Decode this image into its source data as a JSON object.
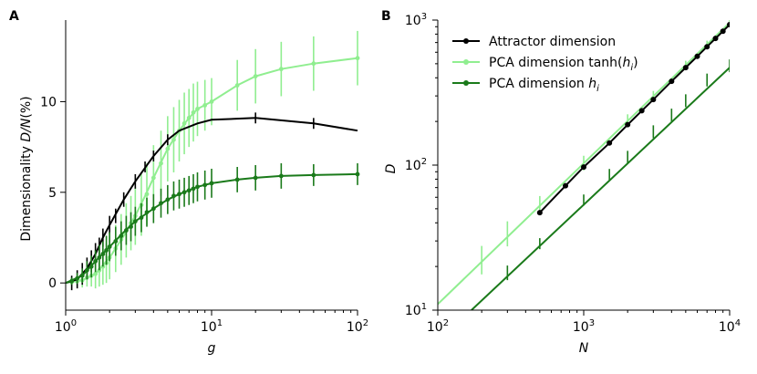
{
  "colors": {
    "attractor": "#000000",
    "pca_tanh": "#90ee90",
    "pca_h": "#1a7a1a"
  },
  "chart_data": [
    {
      "panel": "A",
      "type": "line",
      "xscale": "log",
      "xlim": [
        1,
        100
      ],
      "ylim": [
        -1.5,
        14.5
      ],
      "xlabel": "g",
      "ylabel": "Dimensionality D/N(%)",
      "xticks": [
        {
          "value": 1,
          "base": "10",
          "exp": "0"
        },
        {
          "value": 10,
          "base": "10",
          "exp": "1"
        },
        {
          "value": 100,
          "base": "10",
          "exp": "2"
        }
      ],
      "yticks": [
        {
          "value": 0,
          "label": "0"
        },
        {
          "value": 5,
          "label": "5"
        },
        {
          "value": 10,
          "label": "10"
        }
      ],
      "series": [
        {
          "name": "PCA dimension tanh(h_i)",
          "color_key": "pca_tanh",
          "line": [
            [
              1.0,
              0.0
            ],
            [
              1.3,
              0.15
            ],
            [
              1.6,
              0.5
            ],
            [
              2.0,
              1.4
            ],
            [
              2.5,
              2.6
            ],
            [
              3.0,
              3.7
            ],
            [
              3.5,
              4.8
            ],
            [
              4.0,
              5.8
            ],
            [
              5.0,
              7.4
            ],
            [
              6.0,
              8.4
            ],
            [
              7.0,
              9.1
            ],
            [
              8.0,
              9.6
            ],
            [
              10.0,
              10.0
            ],
            [
              15.0,
              10.9
            ],
            [
              20.0,
              11.4
            ],
            [
              30.0,
              11.8
            ],
            [
              50.0,
              12.1
            ],
            [
              100.0,
              12.4
            ]
          ],
          "points": [
            [
              1.1,
              0.05,
              0.2
            ],
            [
              1.2,
              0.1,
              0.3
            ],
            [
              1.3,
              0.15,
              0.4
            ],
            [
              1.4,
              0.3,
              0.5
            ],
            [
              1.5,
              0.4,
              0.6
            ],
            [
              1.6,
              0.5,
              0.8
            ],
            [
              1.7,
              0.7,
              0.9
            ],
            [
              1.8,
              0.9,
              1.0
            ],
            [
              1.9,
              1.1,
              1.1
            ],
            [
              2.0,
              1.4,
              1.2
            ],
            [
              2.2,
              1.9,
              1.3
            ],
            [
              2.4,
              2.4,
              1.4
            ],
            [
              2.6,
              2.9,
              1.5
            ],
            [
              2.8,
              3.3,
              1.5
            ],
            [
              3.0,
              3.7,
              1.6
            ],
            [
              3.3,
              4.3,
              1.7
            ],
            [
              3.6,
              4.9,
              1.7
            ],
            [
              4.0,
              5.8,
              1.8
            ],
            [
              4.5,
              6.6,
              1.8
            ],
            [
              5.0,
              7.4,
              1.8
            ],
            [
              5.5,
              7.9,
              1.8
            ],
            [
              6.0,
              8.4,
              1.7
            ],
            [
              6.5,
              8.8,
              1.7
            ],
            [
              7.0,
              9.1,
              1.6
            ],
            [
              7.5,
              9.4,
              1.6
            ],
            [
              8.0,
              9.6,
              1.5
            ],
            [
              9.0,
              9.8,
              1.4
            ],
            [
              10.0,
              10.0,
              1.3
            ],
            [
              15.0,
              10.9,
              1.4
            ],
            [
              20.0,
              11.4,
              1.5
            ],
            [
              30.0,
              11.8,
              1.5
            ],
            [
              50.0,
              12.1,
              1.5
            ],
            [
              100.0,
              12.4,
              1.5
            ]
          ]
        },
        {
          "name": "Attractor dimension",
          "color_key": "attractor",
          "line": [
            [
              1.0,
              0.0
            ],
            [
              1.2,
              0.2
            ],
            [
              1.4,
              0.8
            ],
            [
              1.6,
              1.6
            ],
            [
              1.8,
              2.5
            ],
            [
              2.0,
              3.2
            ],
            [
              2.5,
              4.6
            ],
            [
              3.0,
              5.6
            ],
            [
              4.0,
              7.0
            ],
            [
              5.0,
              7.9
            ],
            [
              6.0,
              8.4
            ],
            [
              8.0,
              8.8
            ],
            [
              10.0,
              9.0
            ],
            [
              20.0,
              9.1
            ],
            [
              50.0,
              8.8
            ],
            [
              100.0,
              8.4
            ]
          ],
          "points": [
            [
              1.1,
              0.0,
              0.4
            ],
            [
              1.2,
              0.2,
              0.5
            ],
            [
              1.3,
              0.5,
              0.6
            ],
            [
              1.4,
              0.8,
              0.6
            ],
            [
              1.5,
              1.2,
              0.6
            ],
            [
              1.6,
              1.6,
              0.6
            ],
            [
              1.7,
              2.0,
              0.5
            ],
            [
              1.8,
              2.5,
              0.5
            ],
            [
              2.0,
              3.2,
              0.5
            ],
            [
              2.2,
              3.7,
              0.4
            ],
            [
              2.5,
              4.6,
              0.4
            ],
            [
              3.0,
              5.6,
              0.4
            ],
            [
              3.5,
              6.4,
              0.3
            ],
            [
              4.0,
              7.0,
              0.3
            ],
            [
              5.0,
              7.9,
              0.3
            ],
            [
              20.0,
              9.1,
              0.3
            ],
            [
              50.0,
              8.8,
              0.3
            ]
          ]
        },
        {
          "name": "PCA dimension h_i",
          "color_key": "pca_h",
          "line": [
            [
              1.0,
              0.0
            ],
            [
              1.3,
              0.4
            ],
            [
              1.6,
              1.2
            ],
            [
              2.0,
              2.0
            ],
            [
              2.5,
              2.8
            ],
            [
              3.0,
              3.4
            ],
            [
              4.0,
              4.1
            ],
            [
              5.0,
              4.6
            ],
            [
              6.0,
              4.9
            ],
            [
              8.0,
              5.3
            ],
            [
              10.0,
              5.5
            ],
            [
              15.0,
              5.7
            ],
            [
              20.0,
              5.8
            ],
            [
              30.0,
              5.9
            ],
            [
              50.0,
              5.95
            ],
            [
              100.0,
              6.0
            ]
          ],
          "points": [
            [
              1.1,
              0.1,
              0.2
            ],
            [
              1.2,
              0.25,
              0.3
            ],
            [
              1.3,
              0.4,
              0.4
            ],
            [
              1.4,
              0.7,
              0.5
            ],
            [
              1.5,
              0.9,
              0.6
            ],
            [
              1.6,
              1.2,
              0.6
            ],
            [
              1.7,
              1.4,
              0.7
            ],
            [
              1.8,
              1.6,
              0.7
            ],
            [
              1.9,
              1.8,
              0.8
            ],
            [
              2.0,
              2.0,
              0.8
            ],
            [
              2.2,
              2.3,
              0.8
            ],
            [
              2.4,
              2.6,
              0.8
            ],
            [
              2.6,
              2.9,
              0.8
            ],
            [
              2.8,
              3.1,
              0.8
            ],
            [
              3.0,
              3.4,
              0.8
            ],
            [
              3.3,
              3.6,
              0.8
            ],
            [
              3.6,
              3.9,
              0.8
            ],
            [
              4.0,
              4.1,
              0.8
            ],
            [
              4.5,
              4.4,
              0.8
            ],
            [
              5.0,
              4.6,
              0.8
            ],
            [
              5.5,
              4.8,
              0.8
            ],
            [
              6.0,
              4.9,
              0.8
            ],
            [
              6.5,
              5.0,
              0.8
            ],
            [
              7.0,
              5.1,
              0.8
            ],
            [
              7.5,
              5.2,
              0.8
            ],
            [
              8.0,
              5.3,
              0.8
            ],
            [
              9.0,
              5.4,
              0.8
            ],
            [
              10.0,
              5.5,
              0.8
            ],
            [
              15.0,
              5.7,
              0.7
            ],
            [
              20.0,
              5.8,
              0.7
            ],
            [
              30.0,
              5.9,
              0.7
            ],
            [
              50.0,
              5.95,
              0.6
            ],
            [
              100.0,
              6.0,
              0.6
            ]
          ]
        }
      ]
    },
    {
      "panel": "B",
      "type": "line",
      "xscale": "log",
      "yscale": "log",
      "xlim": [
        100,
        10000
      ],
      "ylim": [
        10,
        1000
      ],
      "xlabel": "N",
      "ylabel": "D",
      "xticks": [
        {
          "value": 100,
          "base": "10",
          "exp": "2"
        },
        {
          "value": 1000,
          "base": "10",
          "exp": "3"
        },
        {
          "value": 10000,
          "base": "10",
          "exp": "4"
        }
      ],
      "yticks": [
        {
          "value": 10,
          "base": "10",
          "exp": "1"
        },
        {
          "value": 100,
          "base": "10",
          "exp": "2"
        },
        {
          "value": 1000,
          "base": "10",
          "exp": "3"
        }
      ],
      "legend": {
        "position": "top-left",
        "entries": [
          {
            "prefix": "Attractor dimension",
            "italic": "",
            "sub": "",
            "suffix": "",
            "color_key": "attractor"
          },
          {
            "prefix": "PCA dimension tanh(",
            "italic": "h",
            "sub": "i",
            "suffix": ")",
            "color_key": "pca_tanh"
          },
          {
            "prefix": "PCA dimension ",
            "italic": "h",
            "sub": "i",
            "suffix": "",
            "color_key": "pca_h"
          }
        ]
      },
      "series": [
        {
          "name": "PCA dimension tanh(h_i)",
          "color_key": "pca_tanh",
          "line": [
            [
              100,
              11
            ],
            [
              10000,
              960
            ]
          ],
          "points": [
            [
              200,
              21,
              0.16
            ],
            [
              300,
              32,
              0.14
            ],
            [
              500,
              51,
              0.1
            ],
            [
              1000,
              100,
              0.08
            ],
            [
              2000,
              200,
              0.06
            ],
            [
              3000,
              295,
              0.05
            ],
            [
              5000,
              485,
              0.04
            ],
            [
              7000,
              680,
              0.03
            ],
            [
              10000,
              960,
              0.03
            ]
          ]
        },
        {
          "name": "Attractor dimension",
          "color_key": "attractor",
          "line": [
            [
              500,
              47
            ],
            [
              750,
              72
            ],
            [
              1000,
              97
            ],
            [
              1500,
              142
            ],
            [
              2000,
              190
            ],
            [
              2500,
              237
            ],
            [
              3000,
              283
            ],
            [
              4000,
              378
            ],
            [
              5000,
              470
            ],
            [
              6000,
              562
            ],
            [
              7000,
              655
            ],
            [
              8000,
              747
            ],
            [
              9000,
              838
            ],
            [
              10000,
              930
            ]
          ],
          "points": [
            [
              500,
              47,
              0
            ],
            [
              750,
              72,
              0
            ],
            [
              1000,
              97,
              0
            ],
            [
              1500,
              142,
              0
            ],
            [
              2000,
              190,
              0
            ],
            [
              2500,
              237,
              0
            ],
            [
              3000,
              283,
              0
            ],
            [
              4000,
              378,
              0
            ],
            [
              5000,
              470,
              0
            ],
            [
              6000,
              562,
              0
            ],
            [
              7000,
              655,
              0
            ],
            [
              8000,
              747,
              0
            ],
            [
              9000,
              838,
              0
            ],
            [
              10000,
              930,
              0
            ]
          ]
        },
        {
          "name": "PCA dimension h_i",
          "color_key": "pca_h",
          "line": [
            [
              170,
              10
            ],
            [
              10000,
              470
            ]
          ],
          "points": [
            [
              300,
              17.5,
              0.08
            ],
            [
              500,
              28,
              0.06
            ],
            [
              1000,
              56,
              0.06
            ],
            [
              1500,
              84,
              0.06
            ],
            [
              2000,
              110,
              0.07
            ],
            [
              3000,
              165,
              0.07
            ],
            [
              4000,
              215,
              0.07
            ],
            [
              5000,
              270,
              0.07
            ],
            [
              7000,
              375,
              0.07
            ],
            [
              10000,
              470,
              0.07
            ]
          ]
        }
      ]
    }
  ]
}
